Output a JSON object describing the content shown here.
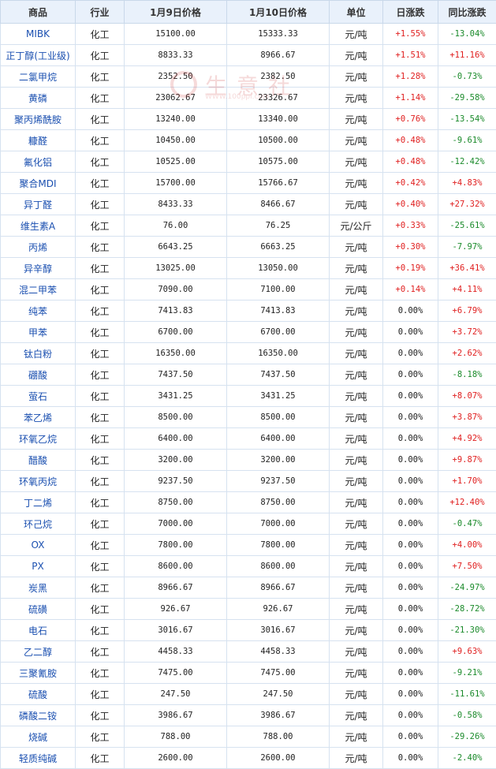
{
  "headers": {
    "name": "商品",
    "industry": "行业",
    "price1": "1月9日价格",
    "price2": "1月10日价格",
    "unit": "单位",
    "day": "日涨跌",
    "yoy": "同比涨跌"
  },
  "watermark": {
    "text": "生意社",
    "url": "WWW.100ppi.com"
  },
  "colors": {
    "up": "#e02020",
    "down": "#1a8a2a",
    "header_bg": "#e9f1fb",
    "name": "#1a4fb0"
  },
  "rows": [
    {
      "name": "MIBK",
      "industry": "化工",
      "p1": "15100.00",
      "p2": "15333.33",
      "unit": "元/吨",
      "day": "+1.55%",
      "yoy": "-13.04%"
    },
    {
      "name": "正丁醇(工业级)",
      "industry": "化工",
      "p1": "8833.33",
      "p2": "8966.67",
      "unit": "元/吨",
      "day": "+1.51%",
      "yoy": "+11.16%"
    },
    {
      "name": "二氯甲烷",
      "industry": "化工",
      "p1": "2352.50",
      "p2": "2382.50",
      "unit": "元/吨",
      "day": "+1.28%",
      "yoy": "-0.73%"
    },
    {
      "name": "黄磷",
      "industry": "化工",
      "p1": "23062.67",
      "p2": "23326.67",
      "unit": "元/吨",
      "day": "+1.14%",
      "yoy": "-29.58%"
    },
    {
      "name": "聚丙烯酰胺",
      "industry": "化工",
      "p1": "13240.00",
      "p2": "13340.00",
      "unit": "元/吨",
      "day": "+0.76%",
      "yoy": "-13.54%"
    },
    {
      "name": "糠醛",
      "industry": "化工",
      "p1": "10450.00",
      "p2": "10500.00",
      "unit": "元/吨",
      "day": "+0.48%",
      "yoy": "-9.61%"
    },
    {
      "name": "氟化铝",
      "industry": "化工",
      "p1": "10525.00",
      "p2": "10575.00",
      "unit": "元/吨",
      "day": "+0.48%",
      "yoy": "-12.42%"
    },
    {
      "name": "聚合MDI",
      "industry": "化工",
      "p1": "15700.00",
      "p2": "15766.67",
      "unit": "元/吨",
      "day": "+0.42%",
      "yoy": "+4.83%"
    },
    {
      "name": "异丁醛",
      "industry": "化工",
      "p1": "8433.33",
      "p2": "8466.67",
      "unit": "元/吨",
      "day": "+0.40%",
      "yoy": "+27.32%"
    },
    {
      "name": "维生素A",
      "industry": "化工",
      "p1": "76.00",
      "p2": "76.25",
      "unit": "元/公斤",
      "day": "+0.33%",
      "yoy": "-25.61%"
    },
    {
      "name": "丙烯",
      "industry": "化工",
      "p1": "6643.25",
      "p2": "6663.25",
      "unit": "元/吨",
      "day": "+0.30%",
      "yoy": "-7.97%"
    },
    {
      "name": "异辛醇",
      "industry": "化工",
      "p1": "13025.00",
      "p2": "13050.00",
      "unit": "元/吨",
      "day": "+0.19%",
      "yoy": "+36.41%"
    },
    {
      "name": "混二甲苯",
      "industry": "化工",
      "p1": "7090.00",
      "p2": "7100.00",
      "unit": "元/吨",
      "day": "+0.14%",
      "yoy": "+4.11%"
    },
    {
      "name": "纯苯",
      "industry": "化工",
      "p1": "7413.83",
      "p2": "7413.83",
      "unit": "元/吨",
      "day": "0.00%",
      "yoy": "+6.79%"
    },
    {
      "name": "甲苯",
      "industry": "化工",
      "p1": "6700.00",
      "p2": "6700.00",
      "unit": "元/吨",
      "day": "0.00%",
      "yoy": "+3.72%"
    },
    {
      "name": "钛白粉",
      "industry": "化工",
      "p1": "16350.00",
      "p2": "16350.00",
      "unit": "元/吨",
      "day": "0.00%",
      "yoy": "+2.62%"
    },
    {
      "name": "硼酸",
      "industry": "化工",
      "p1": "7437.50",
      "p2": "7437.50",
      "unit": "元/吨",
      "day": "0.00%",
      "yoy": "-8.18%"
    },
    {
      "name": "萤石",
      "industry": "化工",
      "p1": "3431.25",
      "p2": "3431.25",
      "unit": "元/吨",
      "day": "0.00%",
      "yoy": "+8.07%"
    },
    {
      "name": "苯乙烯",
      "industry": "化工",
      "p1": "8500.00",
      "p2": "8500.00",
      "unit": "元/吨",
      "day": "0.00%",
      "yoy": "+3.87%"
    },
    {
      "name": "环氧乙烷",
      "industry": "化工",
      "p1": "6400.00",
      "p2": "6400.00",
      "unit": "元/吨",
      "day": "0.00%",
      "yoy": "+4.92%"
    },
    {
      "name": "醋酸",
      "industry": "化工",
      "p1": "3200.00",
      "p2": "3200.00",
      "unit": "元/吨",
      "day": "0.00%",
      "yoy": "+9.87%"
    },
    {
      "name": "环氧丙烷",
      "industry": "化工",
      "p1": "9237.50",
      "p2": "9237.50",
      "unit": "元/吨",
      "day": "0.00%",
      "yoy": "+1.70%"
    },
    {
      "name": "丁二烯",
      "industry": "化工",
      "p1": "8750.00",
      "p2": "8750.00",
      "unit": "元/吨",
      "day": "0.00%",
      "yoy": "+12.40%"
    },
    {
      "name": "环己烷",
      "industry": "化工",
      "p1": "7000.00",
      "p2": "7000.00",
      "unit": "元/吨",
      "day": "0.00%",
      "yoy": "-0.47%"
    },
    {
      "name": "OX",
      "industry": "化工",
      "p1": "7800.00",
      "p2": "7800.00",
      "unit": "元/吨",
      "day": "0.00%",
      "yoy": "+4.00%"
    },
    {
      "name": "PX",
      "industry": "化工",
      "p1": "8600.00",
      "p2": "8600.00",
      "unit": "元/吨",
      "day": "0.00%",
      "yoy": "+7.50%"
    },
    {
      "name": "炭黑",
      "industry": "化工",
      "p1": "8966.67",
      "p2": "8966.67",
      "unit": "元/吨",
      "day": "0.00%",
      "yoy": "-24.97%"
    },
    {
      "name": "硫磺",
      "industry": "化工",
      "p1": "926.67",
      "p2": "926.67",
      "unit": "元/吨",
      "day": "0.00%",
      "yoy": "-28.72%"
    },
    {
      "name": "电石",
      "industry": "化工",
      "p1": "3016.67",
      "p2": "3016.67",
      "unit": "元/吨",
      "day": "0.00%",
      "yoy": "-21.30%"
    },
    {
      "name": "乙二醇",
      "industry": "化工",
      "p1": "4458.33",
      "p2": "4458.33",
      "unit": "元/吨",
      "day": "0.00%",
      "yoy": "+9.63%"
    },
    {
      "name": "三聚氰胺",
      "industry": "化工",
      "p1": "7475.00",
      "p2": "7475.00",
      "unit": "元/吨",
      "day": "0.00%",
      "yoy": "-9.21%"
    },
    {
      "name": "硫酸",
      "industry": "化工",
      "p1": "247.50",
      "p2": "247.50",
      "unit": "元/吨",
      "day": "0.00%",
      "yoy": "-11.61%"
    },
    {
      "name": "磷酸二铵",
      "industry": "化工",
      "p1": "3986.67",
      "p2": "3986.67",
      "unit": "元/吨",
      "day": "0.00%",
      "yoy": "-0.58%"
    },
    {
      "name": "烧碱",
      "industry": "化工",
      "p1": "788.00",
      "p2": "788.00",
      "unit": "元/吨",
      "day": "0.00%",
      "yoy": "-29.26%"
    },
    {
      "name": "轻质纯碱",
      "industry": "化工",
      "p1": "2600.00",
      "p2": "2600.00",
      "unit": "元/吨",
      "day": "0.00%",
      "yoy": "-2.40%"
    }
  ]
}
